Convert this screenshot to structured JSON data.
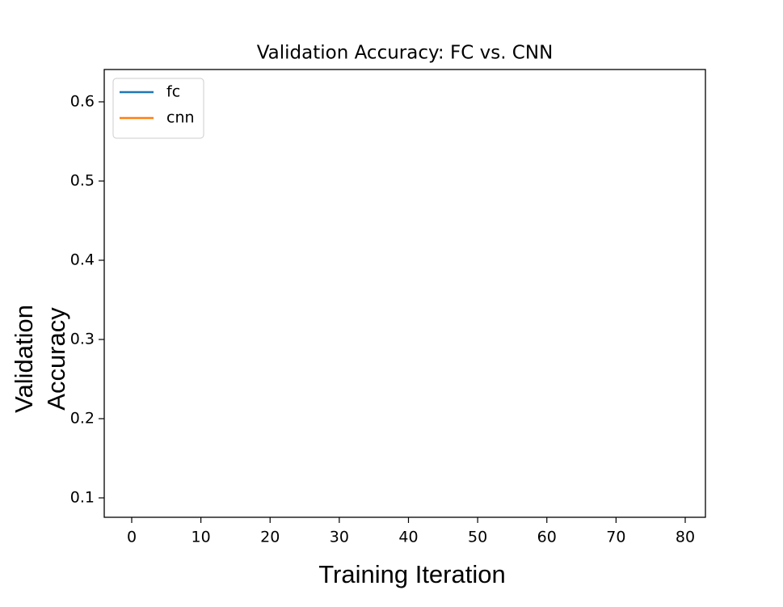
{
  "chart_data": {
    "type": "line",
    "title": "Validation Accuracy: FC vs. CNN",
    "x_label": "Training Iteration",
    "y_label": [
      "Validation",
      "Accuracy"
    ],
    "x": [],
    "series": [
      {
        "name": "fc",
        "color": "#1f77b4",
        "values": []
      },
      {
        "name": "cnn",
        "color": "#ff7f0e",
        "values": []
      }
    ],
    "xlim": [
      -3.97,
      82.92
    ],
    "xticks": [
      0,
      10,
      20,
      30,
      40,
      50,
      60,
      70,
      80
    ],
    "ylim": [
      0.0755,
      0.6408
    ],
    "yticks": [
      0.1,
      0.2,
      0.3,
      0.4,
      0.5,
      0.6
    ],
    "legend": "upper left",
    "grid": false
  }
}
